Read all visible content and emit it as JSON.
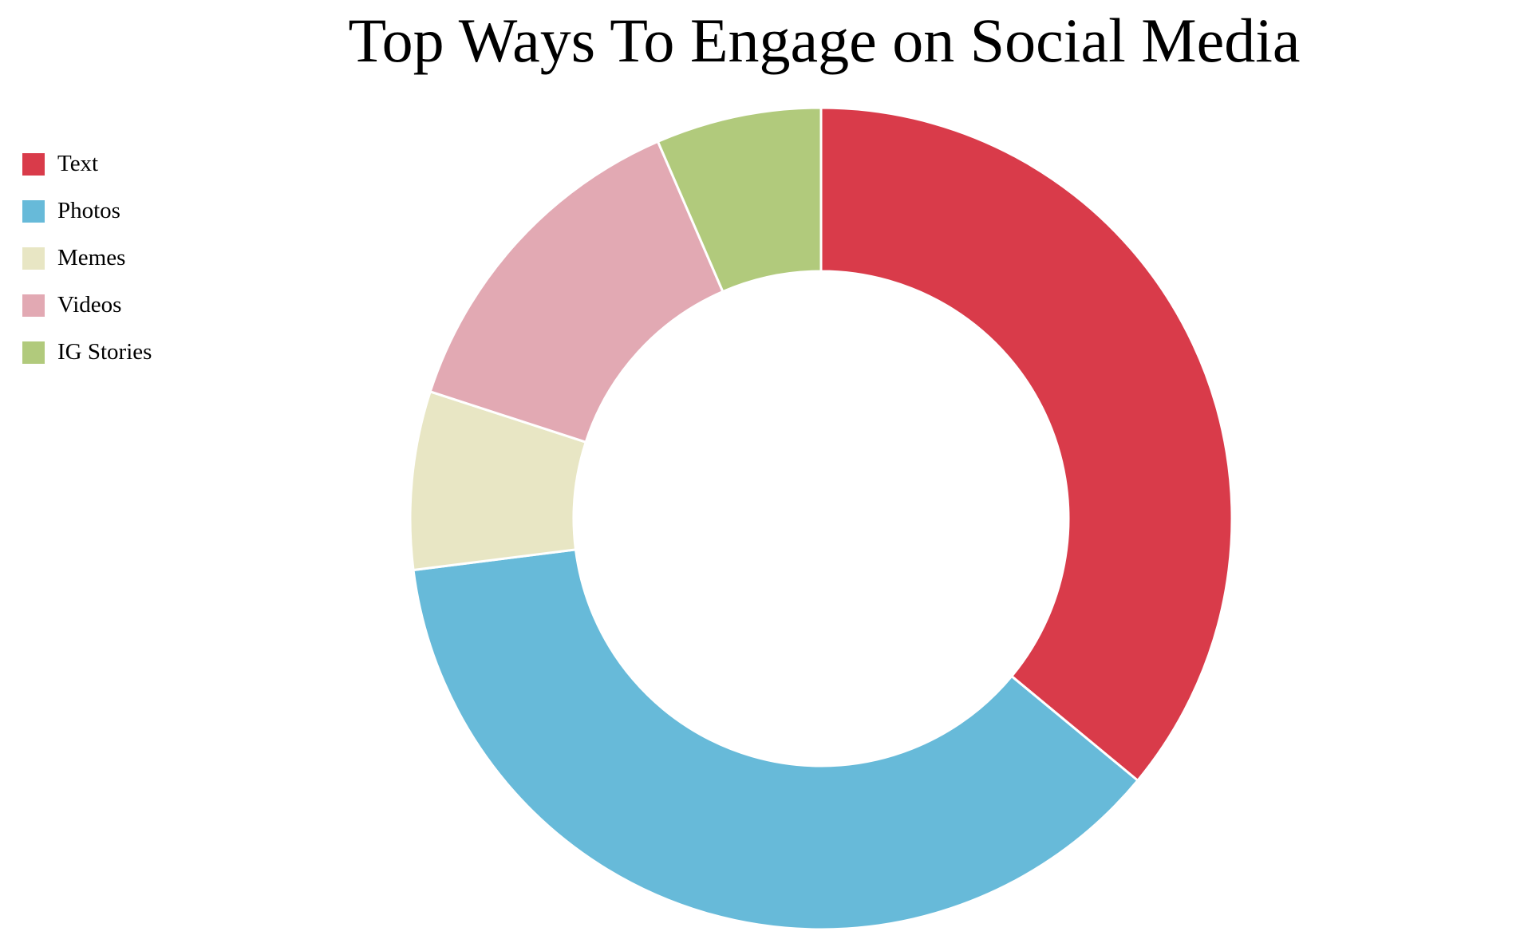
{
  "chart_data": {
    "type": "pie",
    "variant": "donut",
    "title": "Top Ways To Engage on Social Media",
    "categories": [
      "Text",
      "Photos",
      "Memes",
      "Videos",
      "IG Stories"
    ],
    "values": [
      36,
      37,
      7,
      13.5,
      6.5
    ],
    "colors": [
      "#D93B4A",
      "#67BAD9",
      "#E8E6C4",
      "#E2A9B3",
      "#B1CA7C"
    ],
    "legend_position": "top-left",
    "start_angle": "12 o'clock, clockwise"
  }
}
